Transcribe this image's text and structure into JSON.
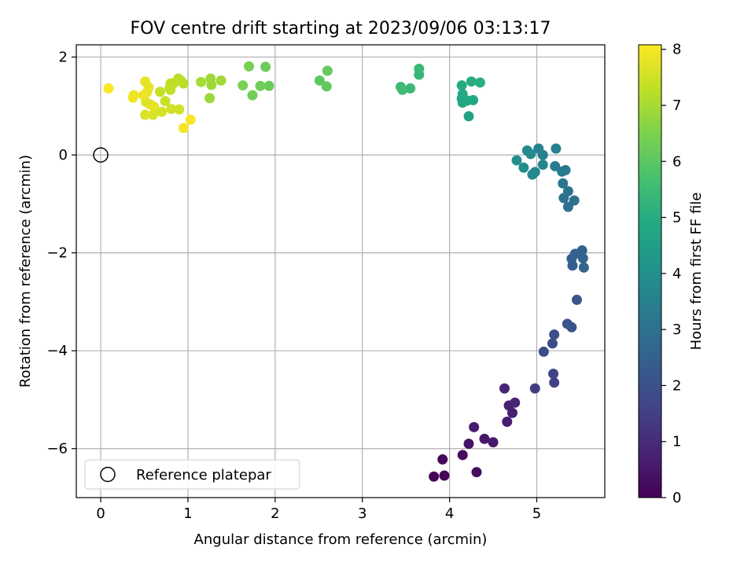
{
  "chart_data": {
    "type": "scatter",
    "title": "FOV centre drift starting at 2023/09/06 03:13:17",
    "xlabel": "Angular distance from reference (arcmin)",
    "ylabel": "Rotation from reference (arcmin)",
    "xlim": [
      -0.28,
      5.78
    ],
    "ylim": [
      -7.0,
      2.25
    ],
    "xticks": [
      0,
      1,
      2,
      3,
      4,
      5
    ],
    "yticks": [
      -6,
      -4,
      -2,
      0,
      2
    ],
    "xtick_labels": [
      "0",
      "1",
      "2",
      "3",
      "4",
      "5"
    ],
    "ytick_labels": [
      "−6",
      "−4",
      "−2",
      "0",
      "2"
    ],
    "grid": true,
    "legend": {
      "placement": "lower-left",
      "entries": [
        "Reference platepar"
      ]
    },
    "colorbar": {
      "label": "Hours from first FF file",
      "min": 0,
      "max": 8.08,
      "ticks": [
        0,
        1,
        2,
        3,
        4,
        5,
        6,
        7,
        8
      ],
      "tick_labels": [
        "0",
        "1",
        "2",
        "3",
        "4",
        "5",
        "6",
        "7",
        "8"
      ],
      "colormap": "viridis"
    },
    "reference_point": {
      "x": 0,
      "y": 0,
      "label": "Reference platepar"
    },
    "points": [
      {
        "x": 3.82,
        "y": -6.57,
        "t": 0.05
      },
      {
        "x": 3.94,
        "y": -6.55,
        "t": 0.1
      },
      {
        "x": 3.92,
        "y": -6.22,
        "t": 0.15
      },
      {
        "x": 4.31,
        "y": -6.48,
        "t": 0.25
      },
      {
        "x": 4.15,
        "y": -6.13,
        "t": 0.3
      },
      {
        "x": 4.22,
        "y": -5.9,
        "t": 0.45
      },
      {
        "x": 4.4,
        "y": -5.8,
        "t": 0.5
      },
      {
        "x": 4.5,
        "y": -5.87,
        "t": 0.55
      },
      {
        "x": 4.28,
        "y": -5.56,
        "t": 0.6
      },
      {
        "x": 4.66,
        "y": -5.45,
        "t": 0.65
      },
      {
        "x": 4.72,
        "y": -5.27,
        "t": 0.7
      },
      {
        "x": 4.68,
        "y": -5.12,
        "t": 0.75
      },
      {
        "x": 4.75,
        "y": -5.06,
        "t": 0.8
      },
      {
        "x": 4.63,
        "y": -4.77,
        "t": 0.85
      },
      {
        "x": 4.98,
        "y": -4.77,
        "t": 1.45
      },
      {
        "x": 5.2,
        "y": -4.65,
        "t": 1.55
      },
      {
        "x": 5.19,
        "y": -4.47,
        "t": 1.6
      },
      {
        "x": 5.08,
        "y": -4.02,
        "t": 1.85
      },
      {
        "x": 5.18,
        "y": -3.85,
        "t": 1.9
      },
      {
        "x": 5.2,
        "y": -3.67,
        "t": 1.95
      },
      {
        "x": 5.35,
        "y": -3.45,
        "t": 2.05
      },
      {
        "x": 5.4,
        "y": -3.52,
        "t": 2.1
      },
      {
        "x": 5.46,
        "y": -2.96,
        "t": 2.15
      },
      {
        "x": 5.41,
        "y": -2.26,
        "t": 2.4
      },
      {
        "x": 5.4,
        "y": -2.12,
        "t": 2.45
      },
      {
        "x": 5.44,
        "y": -2.02,
        "t": 2.5
      },
      {
        "x": 5.52,
        "y": -1.95,
        "t": 2.55
      },
      {
        "x": 5.53,
        "y": -2.11,
        "t": 2.6
      },
      {
        "x": 5.54,
        "y": -2.3,
        "t": 2.62
      },
      {
        "x": 5.36,
        "y": -1.06,
        "t": 2.9
      },
      {
        "x": 5.43,
        "y": -0.93,
        "t": 3.0
      },
      {
        "x": 5.31,
        "y": -0.88,
        "t": 3.05
      },
      {
        "x": 5.36,
        "y": -0.74,
        "t": 3.1
      },
      {
        "x": 5.3,
        "y": -0.58,
        "t": 3.15
      },
      {
        "x": 5.29,
        "y": -0.34,
        "t": 3.25
      },
      {
        "x": 5.33,
        "y": -0.31,
        "t": 3.3
      },
      {
        "x": 5.21,
        "y": -0.23,
        "t": 3.35
      },
      {
        "x": 5.22,
        "y": 0.13,
        "t": 3.45
      },
      {
        "x": 5.02,
        "y": 0.13,
        "t": 3.55
      },
      {
        "x": 5.07,
        "y": 0.0,
        "t": 3.6
      },
      {
        "x": 5.07,
        "y": -0.2,
        "t": 3.65
      },
      {
        "x": 4.98,
        "y": -0.35,
        "t": 3.7
      },
      {
        "x": 4.95,
        "y": -0.4,
        "t": 3.75
      },
      {
        "x": 4.89,
        "y": 0.09,
        "t": 3.8
      },
      {
        "x": 4.93,
        "y": 0.02,
        "t": 3.85
      },
      {
        "x": 4.85,
        "y": -0.26,
        "t": 3.95
      },
      {
        "x": 4.77,
        "y": -0.11,
        "t": 4.05
      },
      {
        "x": 4.22,
        "y": 0.79,
        "t": 4.65
      },
      {
        "x": 4.15,
        "y": 1.07,
        "t": 4.75
      },
      {
        "x": 4.2,
        "y": 1.11,
        "t": 4.8
      },
      {
        "x": 4.27,
        "y": 1.12,
        "t": 4.82
      },
      {
        "x": 4.14,
        "y": 1.15,
        "t": 4.85
      },
      {
        "x": 4.15,
        "y": 1.24,
        "t": 4.88
      },
      {
        "x": 4.14,
        "y": 1.42,
        "t": 4.95
      },
      {
        "x": 4.25,
        "y": 1.5,
        "t": 5.0
      },
      {
        "x": 4.35,
        "y": 1.48,
        "t": 5.05
      },
      {
        "x": 3.65,
        "y": 1.64,
        "t": 5.35
      },
      {
        "x": 3.65,
        "y": 1.76,
        "t": 5.4
      },
      {
        "x": 3.55,
        "y": 1.36,
        "t": 5.45
      },
      {
        "x": 3.44,
        "y": 1.39,
        "t": 5.5
      },
      {
        "x": 3.46,
        "y": 1.33,
        "t": 5.55
      },
      {
        "x": 2.51,
        "y": 1.52,
        "t": 6.05
      },
      {
        "x": 2.59,
        "y": 1.4,
        "t": 6.1
      },
      {
        "x": 2.6,
        "y": 1.72,
        "t": 6.15
      },
      {
        "x": 1.93,
        "y": 1.41,
        "t": 6.2
      },
      {
        "x": 1.89,
        "y": 1.8,
        "t": 6.25
      },
      {
        "x": 1.83,
        "y": 1.41,
        "t": 6.3
      },
      {
        "x": 1.74,
        "y": 1.22,
        "t": 6.35
      },
      {
        "x": 1.7,
        "y": 1.81,
        "t": 6.4
      },
      {
        "x": 1.63,
        "y": 1.42,
        "t": 6.45
      },
      {
        "x": 1.25,
        "y": 1.16,
        "t": 6.85
      },
      {
        "x": 1.27,
        "y": 1.43,
        "t": 6.9
      },
      {
        "x": 1.26,
        "y": 1.56,
        "t": 6.92
      },
      {
        "x": 1.38,
        "y": 1.52,
        "t": 6.95
      },
      {
        "x": 1.15,
        "y": 1.49,
        "t": 7.0
      },
      {
        "x": 0.95,
        "y": 1.46,
        "t": 7.2
      },
      {
        "x": 0.89,
        "y": 1.56,
        "t": 7.22
      },
      {
        "x": 0.92,
        "y": 1.52,
        "t": 7.25
      },
      {
        "x": 0.84,
        "y": 1.47,
        "t": 7.28
      },
      {
        "x": 0.8,
        "y": 1.46,
        "t": 7.3
      },
      {
        "x": 0.79,
        "y": 1.36,
        "t": 7.32
      },
      {
        "x": 0.8,
        "y": 1.33,
        "t": 7.35
      },
      {
        "x": 0.68,
        "y": 1.29,
        "t": 7.38
      },
      {
        "x": 0.74,
        "y": 1.1,
        "t": 7.4
      },
      {
        "x": 0.9,
        "y": 0.93,
        "t": 7.5
      },
      {
        "x": 0.81,
        "y": 0.94,
        "t": 7.55
      },
      {
        "x": 0.7,
        "y": 0.88,
        "t": 7.6
      },
      {
        "x": 0.6,
        "y": 0.82,
        "t": 7.62
      },
      {
        "x": 0.51,
        "y": 0.82,
        "t": 7.65
      },
      {
        "x": 0.52,
        "y": 1.08,
        "t": 7.7
      },
      {
        "x": 0.57,
        "y": 1.03,
        "t": 7.72
      },
      {
        "x": 0.61,
        "y": 0.99,
        "t": 7.75
      },
      {
        "x": 0.51,
        "y": 1.5,
        "t": 7.78
      },
      {
        "x": 0.55,
        "y": 1.38,
        "t": 7.8
      },
      {
        "x": 0.53,
        "y": 1.28,
        "t": 7.82
      },
      {
        "x": 0.49,
        "y": 1.22,
        "t": 7.85
      },
      {
        "x": 0.38,
        "y": 1.22,
        "t": 7.88
      },
      {
        "x": 0.37,
        "y": 1.17,
        "t": 7.9
      },
      {
        "x": 0.95,
        "y": 0.55,
        "t": 7.95
      },
      {
        "x": 1.03,
        "y": 0.72,
        "t": 8.0
      },
      {
        "x": 0.09,
        "y": 1.36,
        "t": 8.05
      }
    ]
  }
}
